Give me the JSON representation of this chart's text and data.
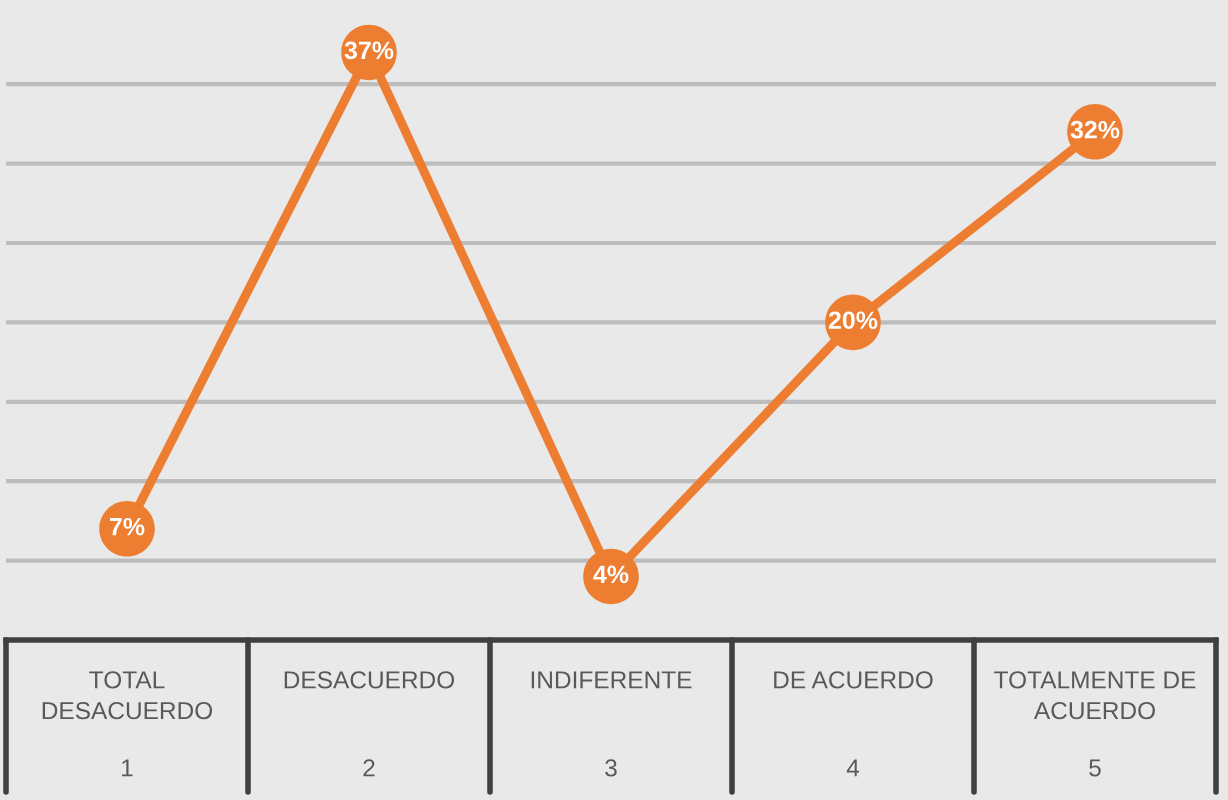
{
  "chart_data": {
    "type": "line",
    "categories": [
      "TOTAL\nDESACUERDO\n1",
      "DESACUERDO\n2",
      "INDIFERENTE\n3",
      "DE ACUERDO\n4",
      "TOTALMENTE DE\nACUERDO\n5"
    ],
    "series": [
      {
        "color": "#ed7d31",
        "values": [
          7,
          37,
          4,
          20,
          32
        ],
        "value_labels": [
          "7%",
          "37%",
          "4%",
          "20%",
          "32%"
        ]
      }
    ],
    "ylim": [
      0,
      40
    ],
    "yticks": [
      {
        "value": 5,
        "label": null
      },
      {
        "value": 10,
        "label": null
      },
      {
        "value": 15,
        "label": null
      },
      {
        "value": 20,
        "label": null
      },
      {
        "value": 25,
        "label": null
      },
      {
        "value": 30,
        "label": null
      },
      {
        "value": 35,
        "label": null
      }
    ],
    "grid": "y",
    "tick_labels": "x",
    "marker": "circle",
    "line_style": "solid"
  }
}
